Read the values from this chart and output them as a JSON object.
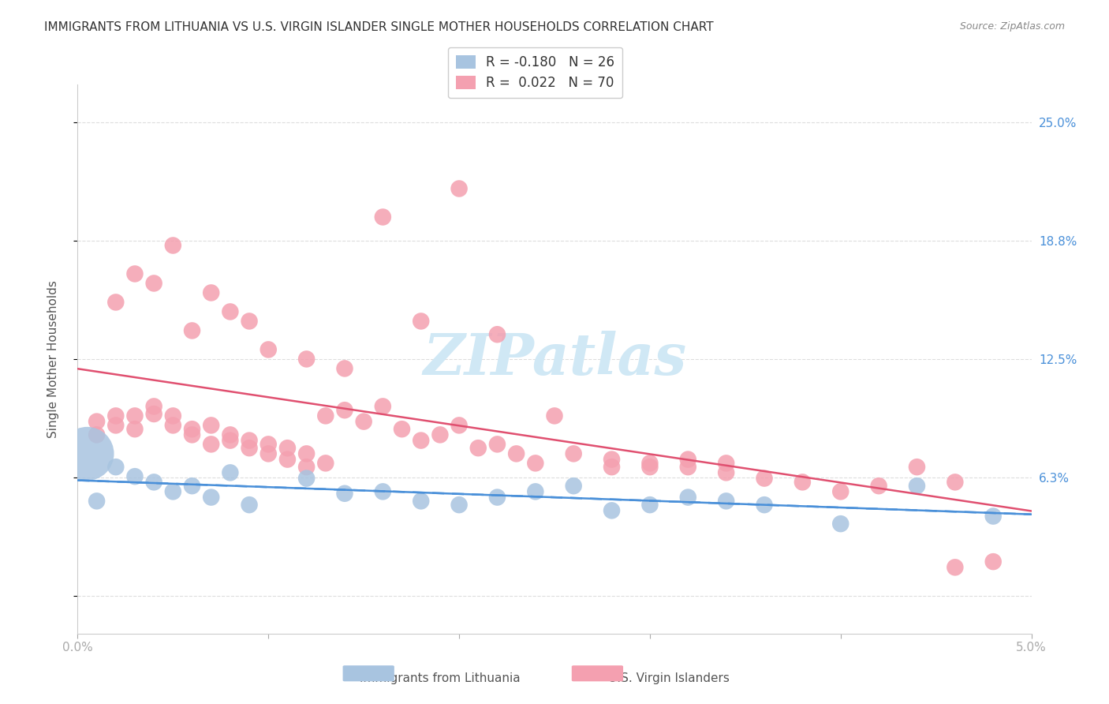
{
  "title": "IMMIGRANTS FROM LITHUANIA VS U.S. VIRGIN ISLANDER SINGLE MOTHER HOUSEHOLDS CORRELATION CHART",
  "source": "Source: ZipAtlas.com",
  "xlabel_bottom": "",
  "ylabel": "Single Mother Households",
  "x_ticks": [
    0.0,
    0.01,
    0.02,
    0.03,
    0.04,
    0.05
  ],
  "x_tick_labels": [
    "0.0%",
    "",
    "",
    "",
    "",
    "5.0%"
  ],
  "y_ticks": [
    0.0,
    0.0625,
    0.125,
    0.1875,
    0.25
  ],
  "y_tick_labels_right": [
    "",
    "6.3%",
    "12.5%",
    "18.8%",
    "25.0%"
  ],
  "xlim": [
    0.0,
    0.05
  ],
  "ylim": [
    -0.02,
    0.27
  ],
  "background_color": "#ffffff",
  "grid_color": "#dddddd",
  "legend_R_blue": "-0.180",
  "legend_N_blue": "26",
  "legend_R_pink": "0.022",
  "legend_N_pink": "70",
  "blue_color": "#a8c4e0",
  "pink_color": "#f4a0b0",
  "blue_line_color": "#4a90d9",
  "pink_line_color": "#e05070",
  "title_color": "#333333",
  "axis_label_color": "#555555",
  "right_tick_color": "#4a90d9",
  "watermark_text": "ZIPatlas",
  "watermark_color": "#d0e8f5",
  "blue_scatter_x": [
    0.002,
    0.003,
    0.004,
    0.005,
    0.006,
    0.007,
    0.008,
    0.009,
    0.0005,
    0.001,
    0.012,
    0.014,
    0.016,
    0.018,
    0.02,
    0.022,
    0.024,
    0.026,
    0.028,
    0.03,
    0.032,
    0.034,
    0.036,
    0.04,
    0.044,
    0.048
  ],
  "blue_scatter_y": [
    0.068,
    0.063,
    0.06,
    0.055,
    0.058,
    0.052,
    0.065,
    0.048,
    0.075,
    0.05,
    0.062,
    0.054,
    0.055,
    0.05,
    0.048,
    0.052,
    0.055,
    0.058,
    0.045,
    0.048,
    0.052,
    0.05,
    0.048,
    0.038,
    0.058,
    0.042
  ],
  "blue_scatter_sizes": [
    30,
    30,
    30,
    30,
    30,
    30,
    30,
    30,
    300,
    30,
    30,
    30,
    30,
    30,
    30,
    30,
    30,
    30,
    30,
    30,
    30,
    30,
    30,
    30,
    30,
    30
  ],
  "pink_scatter_x": [
    0.001,
    0.001,
    0.002,
    0.002,
    0.003,
    0.003,
    0.004,
    0.004,
    0.005,
    0.005,
    0.006,
    0.006,
    0.007,
    0.007,
    0.008,
    0.008,
    0.009,
    0.009,
    0.01,
    0.01,
    0.011,
    0.011,
    0.012,
    0.012,
    0.013,
    0.013,
    0.014,
    0.015,
    0.016,
    0.017,
    0.018,
    0.019,
    0.02,
    0.021,
    0.022,
    0.023,
    0.024,
    0.025,
    0.026,
    0.028,
    0.03,
    0.032,
    0.034,
    0.036,
    0.038,
    0.04,
    0.042,
    0.044,
    0.046,
    0.002,
    0.003,
    0.004,
    0.005,
    0.006,
    0.007,
    0.008,
    0.009,
    0.01,
    0.012,
    0.014,
    0.016,
    0.018,
    0.02,
    0.022,
    0.028,
    0.03,
    0.032,
    0.034,
    0.046,
    0.048
  ],
  "pink_scatter_y": [
    0.085,
    0.092,
    0.09,
    0.095,
    0.088,
    0.095,
    0.096,
    0.1,
    0.09,
    0.095,
    0.085,
    0.088,
    0.08,
    0.09,
    0.082,
    0.085,
    0.078,
    0.082,
    0.075,
    0.08,
    0.072,
    0.078,
    0.068,
    0.075,
    0.07,
    0.095,
    0.098,
    0.092,
    0.1,
    0.088,
    0.082,
    0.085,
    0.09,
    0.078,
    0.08,
    0.075,
    0.07,
    0.095,
    0.075,
    0.072,
    0.07,
    0.068,
    0.065,
    0.062,
    0.06,
    0.055,
    0.058,
    0.068,
    0.06,
    0.155,
    0.17,
    0.165,
    0.185,
    0.14,
    0.16,
    0.15,
    0.145,
    0.13,
    0.125,
    0.12,
    0.2,
    0.145,
    0.215,
    0.138,
    0.068,
    0.068,
    0.072,
    0.07,
    0.015,
    0.018
  ],
  "pink_scatter_sizes": [
    30,
    30,
    30,
    30,
    30,
    30,
    30,
    30,
    30,
    30,
    30,
    30,
    30,
    30,
    30,
    30,
    30,
    30,
    30,
    30,
    30,
    30,
    30,
    30,
    30,
    30,
    30,
    30,
    30,
    30,
    30,
    30,
    30,
    30,
    30,
    30,
    30,
    30,
    30,
    30,
    30,
    30,
    30,
    30,
    30,
    30,
    30,
    30,
    30,
    30,
    30,
    30,
    30,
    30,
    30,
    30,
    30,
    30,
    30,
    30,
    30,
    30,
    30,
    30,
    30,
    30,
    30,
    30,
    30,
    30
  ]
}
